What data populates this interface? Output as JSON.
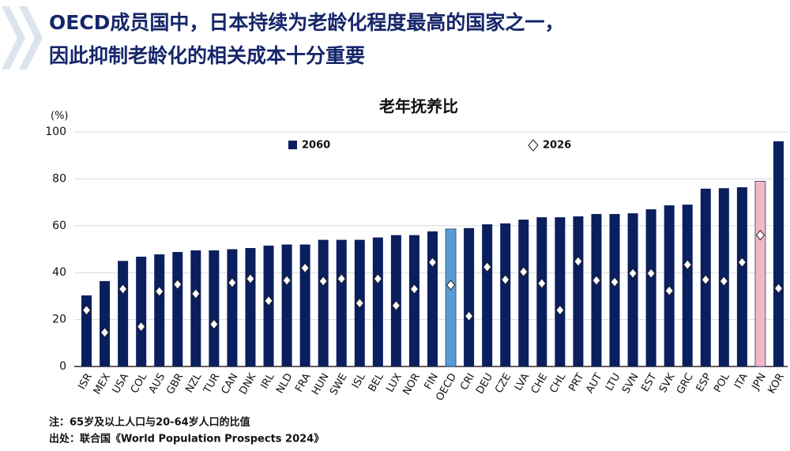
{
  "header": {
    "title_lines": [
      "OECD成员国中，日本持续为老龄化程度最高的国家之一，",
      "因此抑制老龄化的相关成本十分重要"
    ]
  },
  "chart_data": {
    "type": "bar",
    "title": "老年抚养比",
    "y_unit": "(%)",
    "categories": [
      "ISR",
      "MEX",
      "USA",
      "COL",
      "AUS",
      "GBR",
      "NZL",
      "TUR",
      "CAN",
      "DNK",
      "IRL",
      "NLD",
      "FRA",
      "HUN",
      "SWE",
      "ISL",
      "BEL",
      "LUX",
      "NOR",
      "FIN",
      "OECD",
      "CRI",
      "DEU",
      "CZE",
      "LVA",
      "CHE",
      "CHL",
      "PRT",
      "AUT",
      "LTU",
      "SVN",
      "EST",
      "SVK",
      "GRC",
      "ESP",
      "POL",
      "ITA",
      "JPN",
      "KOR"
    ],
    "series": [
      {
        "name": "2060",
        "color": "#0b1f5e",
        "point_colors": [
          "#0b1f5e",
          "#0b1f5e",
          "#0b1f5e",
          "#0b1f5e",
          "#0b1f5e",
          "#0b1f5e",
          "#0b1f5e",
          "#0b1f5e",
          "#0b1f5e",
          "#0b1f5e",
          "#0b1f5e",
          "#0b1f5e",
          "#0b1f5e",
          "#0b1f5e",
          "#0b1f5e",
          "#0b1f5e",
          "#0b1f5e",
          "#0b1f5e",
          "#0b1f5e",
          "#0b1f5e",
          "#5b9bd5",
          "#0b1f5e",
          "#0b1f5e",
          "#0b1f5e",
          "#0b1f5e",
          "#0b1f5e",
          "#0b1f5e",
          "#0b1f5e",
          "#0b1f5e",
          "#0b1f5e",
          "#0b1f5e",
          "#0b1f5e",
          "#0b1f5e",
          "#0b1f5e",
          "#0b1f5e",
          "#0b1f5e",
          "#0b1f5e",
          "#f4b6c2",
          "#0b1f5e"
        ],
        "values": [
          30.3,
          36.4,
          45,
          46.8,
          47.8,
          48.8,
          49.5,
          49.5,
          50,
          50.5,
          51.5,
          52,
          52,
          54,
          54,
          54,
          55,
          56,
          56,
          57.6,
          58.6,
          59,
          60.6,
          61,
          62.6,
          63.6,
          63.6,
          64,
          65,
          65,
          65.3,
          67,
          68.7,
          69,
          75.8,
          76,
          76.4,
          79,
          96
        ]
      },
      {
        "name": "2026",
        "color": "#ffffff",
        "marker": "diamond",
        "values": [
          24,
          14.5,
          33,
          17,
          32,
          35,
          31,
          18,
          35.7,
          37.4,
          28,
          36.7,
          42,
          36.4,
          37.4,
          27,
          37.4,
          26,
          33,
          44.4,
          34.7,
          21.5,
          42.4,
          37,
          40.4,
          35.4,
          24,
          44.8,
          36.7,
          36,
          39.7,
          39.7,
          32.3,
          43.4,
          37,
          36.4,
          44.4,
          56,
          33.3
        ]
      }
    ],
    "ylim": [
      0,
      100
    ],
    "yticks": [
      0,
      20,
      40,
      60,
      80,
      100
    ],
    "grid": true
  },
  "notes": [
    "注：65岁及以上人口与20-64岁人口的比值",
    "出处：联合国《World Population Prospects 2024》"
  ]
}
